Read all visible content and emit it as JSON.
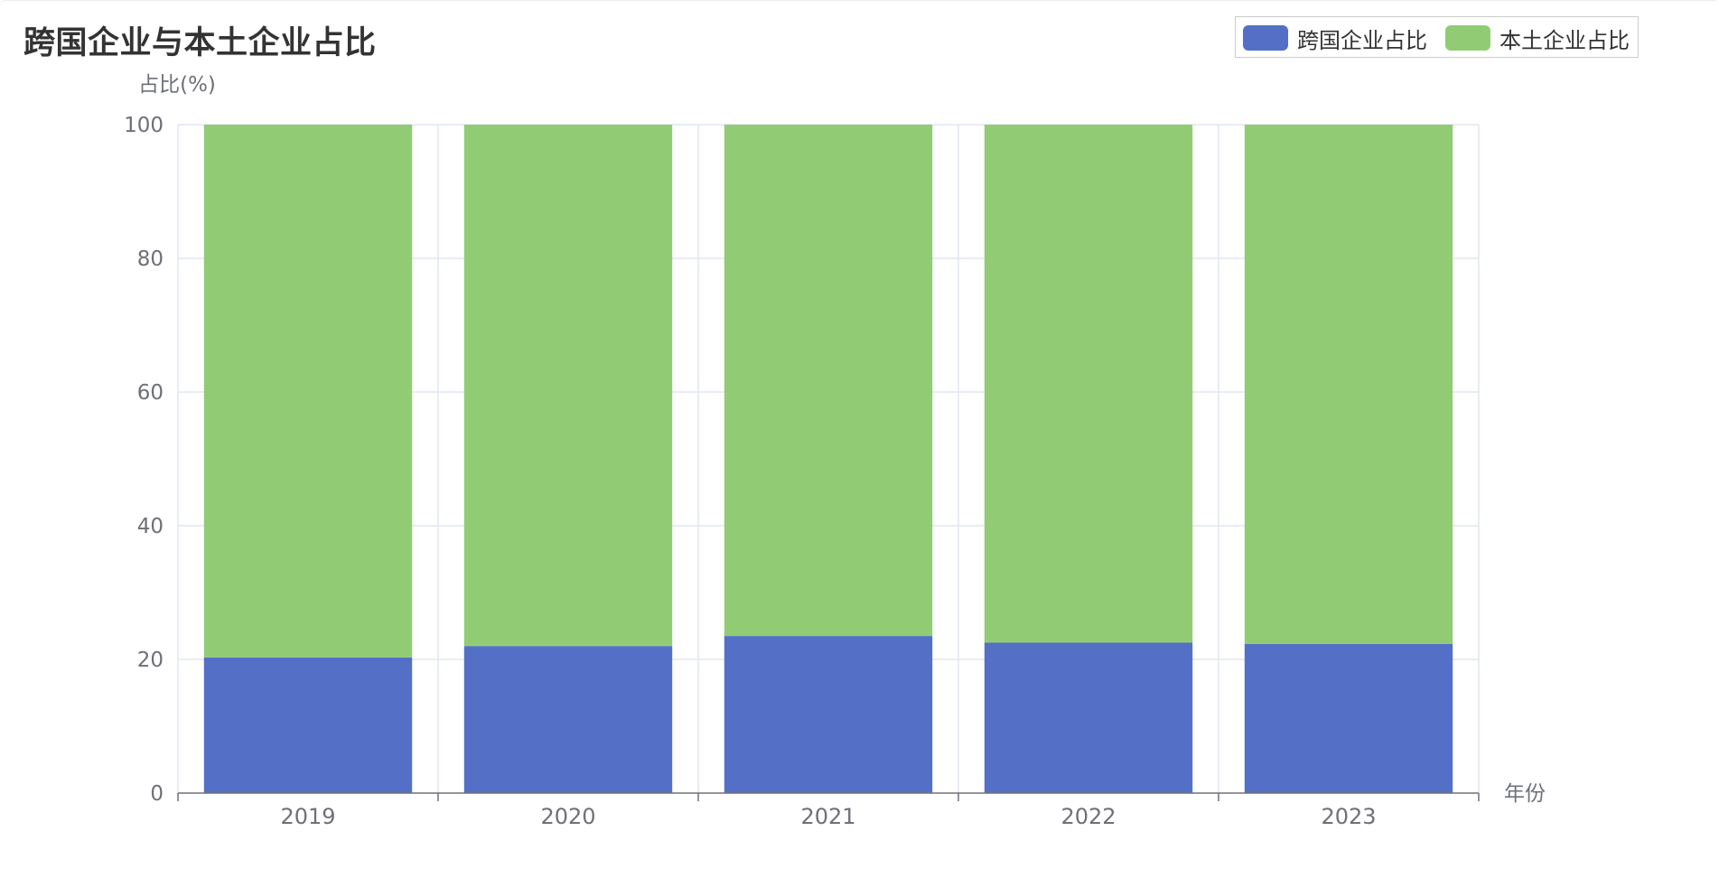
{
  "chart_data": {
    "type": "bar",
    "stacked": true,
    "title": "跨国企业与本土企业占比",
    "ylabel": "占比(%)",
    "xlabel": "年份",
    "categories": [
      "2019",
      "2020",
      "2021",
      "2022",
      "2023"
    ],
    "ylim": [
      0,
      100
    ],
    "yticks": [
      0,
      20,
      40,
      60,
      80,
      100
    ],
    "grid": true,
    "legend_position": "top-right",
    "series": [
      {
        "name": "跨国企业占比",
        "color": "#5470c6",
        "values": [
          20.3,
          22.0,
          23.5,
          22.5,
          22.3
        ]
      },
      {
        "name": "本土企业占比",
        "color": "#91cc75",
        "values": [
          79.7,
          78.0,
          76.5,
          77.5,
          77.7
        ]
      }
    ]
  }
}
